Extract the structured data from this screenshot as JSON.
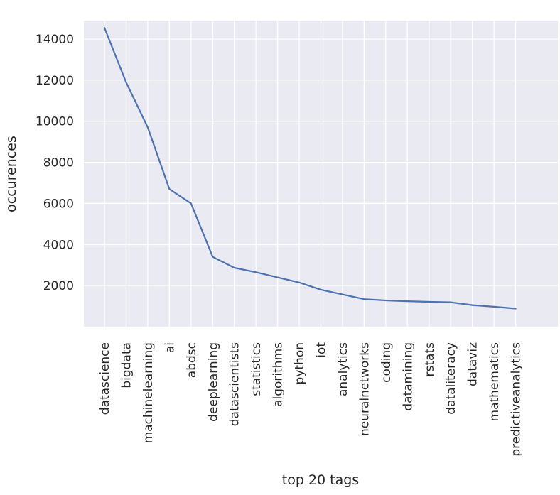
{
  "chart_data": {
    "type": "line",
    "title": "",
    "xlabel": "top 20 tags",
    "ylabel": "occurences",
    "ylim": [
      0,
      14900
    ],
    "yticks": [
      2000,
      4000,
      6000,
      8000,
      10000,
      12000,
      14000
    ],
    "grid": true,
    "legend": "none",
    "colors": {
      "background": "#eaeaf2",
      "grid": "#ffffff",
      "line": "#4c72b0",
      "text": "#262626"
    },
    "categories": [
      "datascience",
      "bigdata",
      "machinelearning",
      "ai",
      "abdsc",
      "deeplearning",
      "datascientists",
      "statistics",
      "algorithms",
      "python",
      "iot",
      "analytics",
      "neuralnetworks",
      "coding",
      "datamining",
      "rstats",
      "dataliteracy",
      "dataviz",
      "mathematics",
      "predictiveanalytics"
    ],
    "series": [
      {
        "values": [
          14550,
          11900,
          9700,
          6700,
          6000,
          3400,
          2870,
          2650,
          2400,
          2150,
          1800,
          1570,
          1340,
          1280,
          1240,
          1210,
          1190,
          1050,
          970,
          880
        ]
      }
    ]
  }
}
